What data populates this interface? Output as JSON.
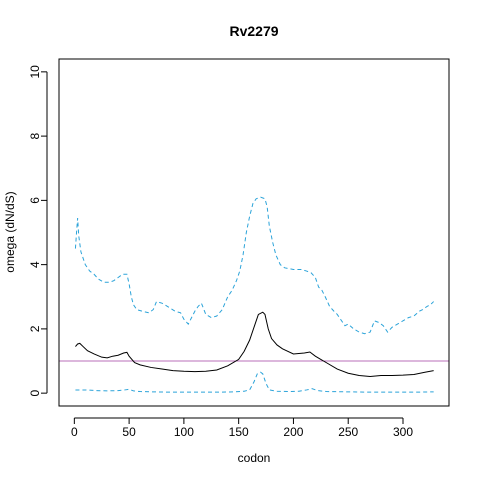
{
  "chart_data": {
    "type": "line",
    "title": "Rv2279",
    "xlabel": "codon",
    "ylabel": "omega (dN/dS)",
    "xlim": [
      -14,
      342
    ],
    "ylim": [
      -0.4,
      10.4
    ],
    "x_ticks": [
      0,
      50,
      100,
      150,
      200,
      250,
      300
    ],
    "y_ticks": [
      0,
      2,
      4,
      6,
      8,
      10
    ],
    "reference_line": {
      "y": 1,
      "color": "#b86fb8"
    },
    "series": [
      {
        "style": "solid",
        "color": "#000000",
        "points": [
          [
            1,
            1.45
          ],
          [
            3,
            1.53
          ],
          [
            5,
            1.55
          ],
          [
            8,
            1.45
          ],
          [
            12,
            1.32
          ],
          [
            18,
            1.22
          ],
          [
            25,
            1.12
          ],
          [
            30,
            1.1
          ],
          [
            35,
            1.15
          ],
          [
            40,
            1.18
          ],
          [
            45,
            1.25
          ],
          [
            48,
            1.27
          ],
          [
            50,
            1.15
          ],
          [
            55,
            0.95
          ],
          [
            60,
            0.88
          ],
          [
            70,
            0.8
          ],
          [
            80,
            0.75
          ],
          [
            90,
            0.7
          ],
          [
            100,
            0.68
          ],
          [
            110,
            0.67
          ],
          [
            120,
            0.68
          ],
          [
            130,
            0.72
          ],
          [
            140,
            0.85
          ],
          [
            150,
            1.05
          ],
          [
            155,
            1.3
          ],
          [
            160,
            1.65
          ],
          [
            165,
            2.15
          ],
          [
            168,
            2.45
          ],
          [
            172,
            2.52
          ],
          [
            174,
            2.45
          ],
          [
            177,
            2.0
          ],
          [
            180,
            1.7
          ],
          [
            185,
            1.5
          ],
          [
            190,
            1.38
          ],
          [
            200,
            1.22
          ],
          [
            210,
            1.25
          ],
          [
            215,
            1.28
          ],
          [
            220,
            1.15
          ],
          [
            225,
            1.05
          ],
          [
            230,
            0.95
          ],
          [
            240,
            0.75
          ],
          [
            250,
            0.62
          ],
          [
            260,
            0.55
          ],
          [
            270,
            0.52
          ],
          [
            280,
            0.55
          ],
          [
            290,
            0.55
          ],
          [
            300,
            0.56
          ],
          [
            310,
            0.58
          ],
          [
            320,
            0.65
          ],
          [
            328,
            0.7
          ]
        ]
      },
      {
        "style": "dashed",
        "color": "#2ba3d9",
        "points": [
          [
            1,
            4.5
          ],
          [
            2,
            5.0
          ],
          [
            3,
            5.45
          ],
          [
            4,
            4.9
          ],
          [
            6,
            4.4
          ],
          [
            8,
            4.2
          ],
          [
            10,
            4.0
          ],
          [
            14,
            3.8
          ],
          [
            18,
            3.7
          ],
          [
            22,
            3.55
          ],
          [
            27,
            3.45
          ],
          [
            32,
            3.45
          ],
          [
            36,
            3.5
          ],
          [
            40,
            3.6
          ],
          [
            44,
            3.7
          ],
          [
            48,
            3.7
          ],
          [
            50,
            3.4
          ],
          [
            52,
            3.0
          ],
          [
            54,
            2.75
          ],
          [
            57,
            2.6
          ],
          [
            62,
            2.55
          ],
          [
            68,
            2.5
          ],
          [
            72,
            2.6
          ],
          [
            75,
            2.85
          ],
          [
            80,
            2.8
          ],
          [
            85,
            2.7
          ],
          [
            92,
            2.55
          ],
          [
            97,
            2.5
          ],
          [
            100,
            2.3
          ],
          [
            104,
            2.15
          ],
          [
            107,
            2.35
          ],
          [
            110,
            2.55
          ],
          [
            113,
            2.7
          ],
          [
            116,
            2.8
          ],
          [
            120,
            2.45
          ],
          [
            125,
            2.35
          ],
          [
            130,
            2.4
          ],
          [
            135,
            2.6
          ],
          [
            140,
            3.0
          ],
          [
            144,
            3.2
          ],
          [
            148,
            3.5
          ],
          [
            151,
            3.8
          ],
          [
            154,
            4.3
          ],
          [
            157,
            5.0
          ],
          [
            160,
            5.5
          ],
          [
            163,
            5.9
          ],
          [
            166,
            6.05
          ],
          [
            170,
            6.1
          ],
          [
            174,
            6.05
          ],
          [
            176,
            5.8
          ],
          [
            178,
            5.2
          ],
          [
            181,
            4.7
          ],
          [
            184,
            4.3
          ],
          [
            188,
            4.0
          ],
          [
            192,
            3.9
          ],
          [
            200,
            3.85
          ],
          [
            207,
            3.85
          ],
          [
            212,
            3.8
          ],
          [
            216,
            3.75
          ],
          [
            220,
            3.6
          ],
          [
            223,
            3.3
          ],
          [
            226,
            3.2
          ],
          [
            229,
            3.0
          ],
          [
            233,
            2.7
          ],
          [
            237,
            2.55
          ],
          [
            240,
            2.45
          ],
          [
            244,
            2.25
          ],
          [
            247,
            2.1
          ],
          [
            250,
            2.15
          ],
          [
            255,
            2.0
          ],
          [
            260,
            1.9
          ],
          [
            265,
            1.85
          ],
          [
            270,
            1.9
          ],
          [
            274,
            2.25
          ],
          [
            278,
            2.2
          ],
          [
            282,
            2.1
          ],
          [
            286,
            1.9
          ],
          [
            290,
            2.05
          ],
          [
            295,
            2.15
          ],
          [
            300,
            2.25
          ],
          [
            305,
            2.35
          ],
          [
            310,
            2.4
          ],
          [
            315,
            2.55
          ],
          [
            318,
            2.6
          ],
          [
            322,
            2.7
          ],
          [
            325,
            2.75
          ],
          [
            328,
            2.85
          ]
        ]
      },
      {
        "style": "dashed",
        "color": "#2ba3d9",
        "points": [
          [
            1,
            0.1
          ],
          [
            10,
            0.1
          ],
          [
            20,
            0.08
          ],
          [
            30,
            0.07
          ],
          [
            40,
            0.08
          ],
          [
            46,
            0.1
          ],
          [
            50,
            0.12
          ],
          [
            54,
            0.07
          ],
          [
            60,
            0.05
          ],
          [
            70,
            0.04
          ],
          [
            90,
            0.03
          ],
          [
            110,
            0.03
          ],
          [
            130,
            0.03
          ],
          [
            145,
            0.04
          ],
          [
            155,
            0.06
          ],
          [
            160,
            0.1
          ],
          [
            164,
            0.35
          ],
          [
            167,
            0.6
          ],
          [
            170,
            0.65
          ],
          [
            172,
            0.6
          ],
          [
            175,
            0.3
          ],
          [
            178,
            0.1
          ],
          [
            185,
            0.06
          ],
          [
            195,
            0.05
          ],
          [
            205,
            0.06
          ],
          [
            212,
            0.1
          ],
          [
            217,
            0.14
          ],
          [
            222,
            0.08
          ],
          [
            230,
            0.05
          ],
          [
            250,
            0.04
          ],
          [
            270,
            0.03
          ],
          [
            290,
            0.03
          ],
          [
            310,
            0.03
          ],
          [
            328,
            0.04
          ]
        ]
      }
    ],
    "grid": false,
    "legend": "none"
  }
}
